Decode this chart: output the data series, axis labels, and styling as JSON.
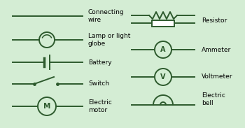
{
  "bg_color": "#d4edd4",
  "line_color": "#2d5a2d",
  "text_color": "#000000",
  "fig_width": 3.5,
  "fig_height": 1.83,
  "dpi": 100,
  "left_symbols": [
    {
      "name": "Connecting\nwire"
    },
    {
      "name": "Lamp or light\nglobe"
    },
    {
      "name": "Battery"
    },
    {
      "name": "Switch"
    },
    {
      "name": "Electric\nmotor"
    }
  ],
  "right_symbols": [
    {
      "name": "Resistor"
    },
    {
      "name": "Ammeter"
    },
    {
      "name": "Voltmeter"
    },
    {
      "name": "Electric\nbell"
    }
  ]
}
